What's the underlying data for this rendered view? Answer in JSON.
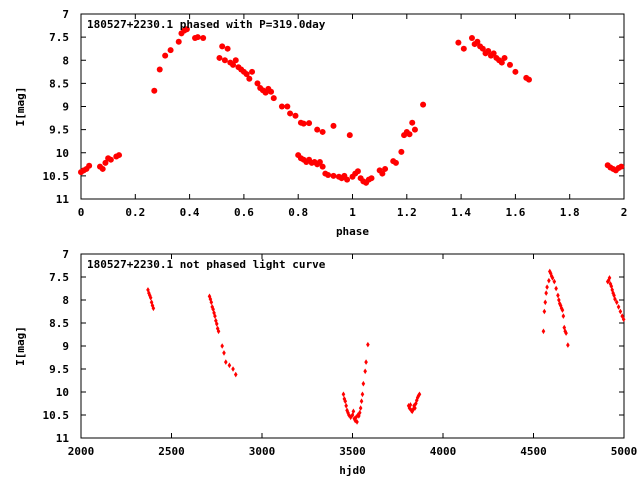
{
  "chart_data": [
    {
      "type": "scatter",
      "title": "180527+2230.1 phased with P=319.0day",
      "xlabel": "phase",
      "ylabel": "I[mag]",
      "xlim": [
        0,
        2
      ],
      "ylim": [
        7,
        11
      ],
      "y_inverted": true,
      "grid": false,
      "marker_color": "#ff0000",
      "marker": "filled-circle",
      "x_ticks": [
        0,
        0.2,
        0.4,
        0.6,
        0.8,
        1,
        1.2,
        1.4,
        1.6,
        1.8,
        2
      ],
      "x_tick_labels": [
        "0",
        "0.2",
        "0.4",
        "0.6",
        "0.8",
        "1",
        "1.2",
        "1.4",
        "1.6",
        "1.8",
        "2"
      ],
      "y_ticks": [
        7,
        7.5,
        8,
        8.5,
        9,
        9.5,
        10,
        10.5,
        11
      ],
      "y_tick_labels": [
        "7",
        "7.5",
        "8",
        "8.5",
        "9",
        "9.5",
        "10",
        "10.5",
        "11"
      ],
      "points": [
        [
          0.0,
          10.42
        ],
        [
          0.01,
          10.38
        ],
        [
          0.02,
          10.35
        ],
        [
          0.03,
          10.28
        ],
        [
          0.07,
          10.3
        ],
        [
          0.08,
          10.35
        ],
        [
          0.09,
          10.22
        ],
        [
          0.1,
          10.12
        ],
        [
          0.11,
          10.15
        ],
        [
          0.13,
          10.08
        ],
        [
          0.14,
          10.05
        ],
        [
          0.27,
          8.66
        ],
        [
          0.29,
          8.2
        ],
        [
          0.31,
          7.9
        ],
        [
          0.33,
          7.78
        ],
        [
          0.36,
          7.6
        ],
        [
          0.37,
          7.42
        ],
        [
          0.38,
          7.36
        ],
        [
          0.39,
          7.33
        ],
        [
          0.42,
          7.52
        ],
        [
          0.43,
          7.5
        ],
        [
          0.45,
          7.52
        ],
        [
          0.51,
          7.95
        ],
        [
          0.52,
          7.7
        ],
        [
          0.53,
          8.0
        ],
        [
          0.54,
          7.75
        ],
        [
          0.55,
          8.05
        ],
        [
          0.56,
          8.1
        ],
        [
          0.57,
          8.0
        ],
        [
          0.58,
          8.15
        ],
        [
          0.59,
          8.2
        ],
        [
          0.6,
          8.25
        ],
        [
          0.61,
          8.3
        ],
        [
          0.62,
          8.4
        ],
        [
          0.63,
          8.25
        ],
        [
          0.65,
          8.5
        ],
        [
          0.66,
          8.6
        ],
        [
          0.67,
          8.65
        ],
        [
          0.68,
          8.7
        ],
        [
          0.69,
          8.62
        ],
        [
          0.7,
          8.68
        ],
        [
          0.71,
          8.82
        ],
        [
          0.74,
          9.0
        ],
        [
          0.76,
          9.0
        ],
        [
          0.77,
          9.15
        ],
        [
          0.79,
          9.2
        ],
        [
          0.81,
          9.35
        ],
        [
          0.82,
          9.37
        ],
        [
          0.84,
          9.36
        ],
        [
          0.87,
          9.5
        ],
        [
          0.89,
          9.55
        ],
        [
          0.93,
          9.42
        ],
        [
          0.8,
          10.05
        ],
        [
          0.81,
          10.12
        ],
        [
          0.82,
          10.15
        ],
        [
          0.83,
          10.2
        ],
        [
          0.84,
          10.15
        ],
        [
          0.85,
          10.22
        ],
        [
          0.86,
          10.2
        ],
        [
          0.87,
          10.25
        ],
        [
          0.88,
          10.2
        ],
        [
          0.89,
          10.3
        ],
        [
          0.9,
          10.45
        ],
        [
          0.91,
          10.48
        ],
        [
          0.93,
          10.5
        ],
        [
          0.95,
          10.52
        ],
        [
          0.96,
          10.55
        ],
        [
          0.97,
          10.5
        ],
        [
          0.98,
          10.58
        ],
        [
          0.99,
          9.62
        ],
        [
          1.0,
          10.52
        ],
        [
          1.01,
          10.45
        ],
        [
          1.02,
          10.4
        ],
        [
          1.03,
          10.55
        ],
        [
          1.04,
          10.62
        ],
        [
          1.05,
          10.65
        ],
        [
          1.06,
          10.58
        ],
        [
          1.07,
          10.55
        ],
        [
          1.1,
          10.38
        ],
        [
          1.11,
          10.45
        ],
        [
          1.12,
          10.35
        ],
        [
          1.15,
          10.18
        ],
        [
          1.16,
          10.22
        ],
        [
          1.18,
          9.98
        ],
        [
          1.19,
          9.62
        ],
        [
          1.2,
          9.55
        ],
        [
          1.21,
          9.6
        ],
        [
          1.22,
          9.35
        ],
        [
          1.23,
          9.5
        ],
        [
          1.26,
          8.96
        ],
        [
          1.39,
          7.62
        ],
        [
          1.41,
          7.75
        ],
        [
          1.44,
          7.52
        ],
        [
          1.45,
          7.65
        ],
        [
          1.46,
          7.6
        ],
        [
          1.47,
          7.7
        ],
        [
          1.48,
          7.75
        ],
        [
          1.49,
          7.85
        ],
        [
          1.5,
          7.8
        ],
        [
          1.51,
          7.9
        ],
        [
          1.52,
          7.85
        ],
        [
          1.53,
          7.95
        ],
        [
          1.54,
          8.0
        ],
        [
          1.55,
          8.05
        ],
        [
          1.56,
          7.95
        ],
        [
          1.58,
          8.1
        ],
        [
          1.6,
          8.25
        ],
        [
          1.64,
          8.38
        ],
        [
          1.65,
          8.42
        ],
        [
          1.94,
          10.27
        ],
        [
          1.95,
          10.32
        ],
        [
          1.96,
          10.35
        ],
        [
          1.97,
          10.38
        ],
        [
          1.98,
          10.33
        ],
        [
          1.99,
          10.3
        ]
      ]
    },
    {
      "type": "scatter",
      "title": "180527+2230.1 not phased light curve",
      "xlabel": "hjd0",
      "ylabel": "I[mag]",
      "xlim": [
        2000,
        5000
      ],
      "ylim": [
        7,
        11
      ],
      "y_inverted": true,
      "grid": false,
      "marker_color": "#ff0000",
      "marker": "small-diamond",
      "x_ticks": [
        2000,
        2500,
        3000,
        3500,
        4000,
        4500,
        5000
      ],
      "x_tick_labels": [
        "2000",
        "2500",
        "3000",
        "3500",
        "4000",
        "4500",
        "5000"
      ],
      "y_ticks": [
        7,
        7.5,
        8,
        8.5,
        9,
        9.5,
        10,
        10.5,
        11
      ],
      "y_tick_labels": [
        "7",
        "7.5",
        "8",
        "8.5",
        "9",
        "9.5",
        "10",
        "10.5",
        "11"
      ],
      "points": [
        [
          2370,
          7.78
        ],
        [
          2375,
          7.85
        ],
        [
          2380,
          7.9
        ],
        [
          2385,
          7.95
        ],
        [
          2390,
          8.05
        ],
        [
          2395,
          8.12
        ],
        [
          2400,
          8.18
        ],
        [
          2710,
          7.92
        ],
        [
          2715,
          7.98
        ],
        [
          2720,
          8.05
        ],
        [
          2725,
          8.15
        ],
        [
          2730,
          8.2
        ],
        [
          2735,
          8.28
        ],
        [
          2740,
          8.35
        ],
        [
          2745,
          8.45
        ],
        [
          2750,
          8.52
        ],
        [
          2755,
          8.62
        ],
        [
          2760,
          8.68
        ],
        [
          2780,
          9.0
        ],
        [
          2790,
          9.15
        ],
        [
          2800,
          9.35
        ],
        [
          2820,
          9.42
        ],
        [
          2840,
          9.5
        ],
        [
          2855,
          9.62
        ],
        [
          3450,
          10.05
        ],
        [
          3455,
          10.15
        ],
        [
          3460,
          10.2
        ],
        [
          3465,
          10.3
        ],
        [
          3470,
          10.4
        ],
        [
          3475,
          10.45
        ],
        [
          3480,
          10.5
        ],
        [
          3490,
          10.55
        ],
        [
          3500,
          10.5
        ],
        [
          3505,
          10.42
        ],
        [
          3510,
          10.58
        ],
        [
          3515,
          10.62
        ],
        [
          3520,
          10.55
        ],
        [
          3525,
          10.65
        ],
        [
          3530,
          10.5
        ],
        [
          3535,
          10.52
        ],
        [
          3540,
          10.45
        ],
        [
          3545,
          10.35
        ],
        [
          3550,
          10.2
        ],
        [
          3555,
          10.05
        ],
        [
          3560,
          9.82
        ],
        [
          3570,
          9.55
        ],
        [
          3575,
          9.35
        ],
        [
          3585,
          8.97
        ],
        [
          3810,
          10.3
        ],
        [
          3815,
          10.35
        ],
        [
          3820,
          10.28
        ],
        [
          3825,
          10.4
        ],
        [
          3830,
          10.42
        ],
        [
          3835,
          10.38
        ],
        [
          3840,
          10.3
        ],
        [
          3845,
          10.35
        ],
        [
          3850,
          10.25
        ],
        [
          3855,
          10.18
        ],
        [
          3860,
          10.12
        ],
        [
          3865,
          10.08
        ],
        [
          3870,
          10.05
        ],
        [
          4555,
          8.68
        ],
        [
          4560,
          8.25
        ],
        [
          4565,
          8.05
        ],
        [
          4570,
          7.85
        ],
        [
          4575,
          7.72
        ],
        [
          4585,
          7.58
        ],
        [
          4590,
          7.38
        ],
        [
          4595,
          7.42
        ],
        [
          4600,
          7.48
        ],
        [
          4605,
          7.52
        ],
        [
          4615,
          7.6
        ],
        [
          4625,
          7.75
        ],
        [
          4635,
          7.9
        ],
        [
          4640,
          8.0
        ],
        [
          4645,
          8.08
        ],
        [
          4650,
          8.12
        ],
        [
          4655,
          8.18
        ],
        [
          4660,
          8.22
        ],
        [
          4665,
          8.35
        ],
        [
          4670,
          8.6
        ],
        [
          4675,
          8.68
        ],
        [
          4680,
          8.72
        ],
        [
          4690,
          8.98
        ],
        [
          4910,
          7.6
        ],
        [
          4915,
          7.58
        ],
        [
          4920,
          7.52
        ],
        [
          4925,
          7.65
        ],
        [
          4930,
          7.7
        ],
        [
          4935,
          7.78
        ],
        [
          4940,
          7.85
        ],
        [
          4945,
          7.9
        ],
        [
          4950,
          7.98
        ],
        [
          4960,
          8.05
        ],
        [
          4970,
          8.15
        ],
        [
          4980,
          8.25
        ],
        [
          4990,
          8.35
        ],
        [
          4998,
          8.42
        ]
      ]
    }
  ]
}
